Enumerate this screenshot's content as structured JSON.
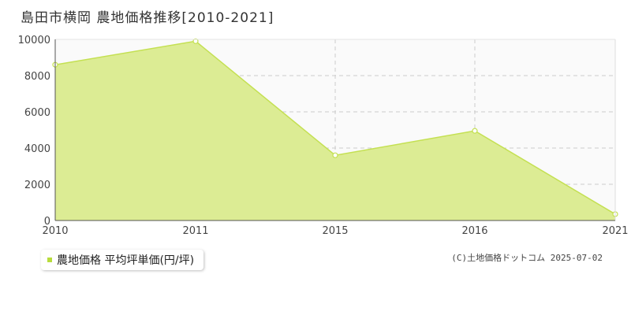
{
  "chart_data": {
    "type": "area",
    "title": "島田市横岡 農地価格推移[2010-2021]",
    "x": [
      "2010",
      "2011",
      "2015",
      "2016",
      "2021"
    ],
    "series": [
      {
        "name": "農地価格 平均坪単価(円/坪)",
        "values": [
          8600,
          9900,
          3600,
          4950,
          350
        ]
      }
    ],
    "ylim": [
      0,
      10000
    ],
    "yticks": [
      "0",
      "2000",
      "4000",
      "6000",
      "8000",
      "10000"
    ],
    "grid": true,
    "legend": "bottom-left",
    "colors": {
      "fill": "#dcec94",
      "line": "#c4e052",
      "marker_fill": "#ffffff",
      "marker_stroke": "#c4e052",
      "legend_marker": "#b8dc3c",
      "grid": "#cccccc",
      "plot_bg": "#fafafa"
    }
  },
  "credit": "(C)土地価格ドットコム 2025-07-02"
}
